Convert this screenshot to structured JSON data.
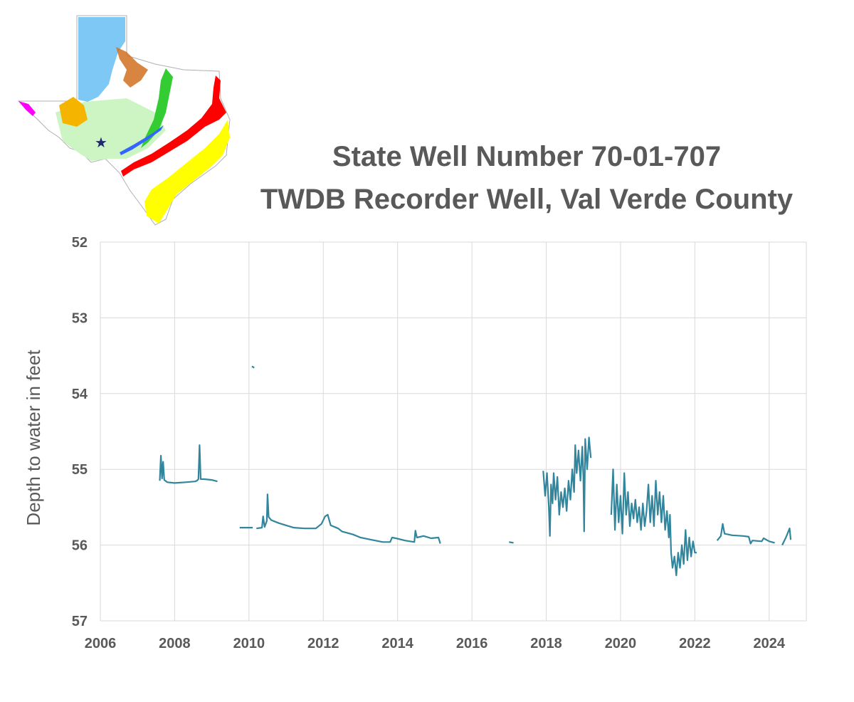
{
  "title": {
    "line1": "State Well Number 70-01-707",
    "line2": "TWDB Recorder Well, Val Verde County"
  },
  "inset_map": {
    "subject": "Texas aquifer map",
    "marker": "star-icon",
    "colors": {
      "ogallala": "#7ec8f5",
      "edwards_trinity": "#cdf5c4",
      "pecos_valley": "#f5b400",
      "trinity": "#33cc33",
      "carrizo_wilcox": "#ff0000",
      "gulf_coast": "#ffff00",
      "seymour": "#d07020",
      "hueco_mesilla": "#ff00ff",
      "edwards_bfz": "#3366ff",
      "star": "#1f2a6e"
    }
  },
  "chart_data": {
    "type": "line",
    "title": "State Well Number 70-01-707 TWDB Recorder Well, Val Verde County",
    "xlabel": "",
    "ylabel": "Depth to water in feet",
    "x_unit": "year",
    "xlim": [
      2006,
      2025
    ],
    "ylim": [
      57,
      52
    ],
    "y_inverted": true,
    "x_ticks": [
      "2006",
      "2008",
      "2010",
      "2012",
      "2014",
      "2016",
      "2018",
      "2020",
      "2022",
      "2024"
    ],
    "y_ticks": [
      "52",
      "53",
      "54",
      "55",
      "56",
      "57"
    ],
    "grid": true,
    "legend": "none",
    "color": "#31859c",
    "series": [
      {
        "segments": [
          [
            [
              2007.6,
              55.15
            ],
            [
              2007.63,
              54.82
            ],
            [
              2007.66,
              55.12
            ],
            [
              2007.69,
              54.9
            ],
            [
              2007.72,
              55.14
            ],
            [
              2007.8,
              55.17
            ],
            [
              2008.0,
              55.18
            ],
            [
              2008.3,
              55.17
            ],
            [
              2008.55,
              55.16
            ],
            [
              2008.6,
              55.15
            ],
            [
              2008.64,
              55.13
            ],
            [
              2008.67,
              54.68
            ],
            [
              2008.7,
              55.13
            ],
            [
              2008.8,
              55.13
            ],
            [
              2009.0,
              55.14
            ],
            [
              2009.15,
              55.16
            ]
          ],
          [
            [
              2009.75,
              55.77
            ],
            [
              2010.1,
              55.77
            ]
          ],
          [
            [
              2010.08,
              53.64
            ],
            [
              2010.14,
              53.66
            ]
          ],
          [
            [
              2010.2,
              55.78
            ],
            [
              2010.35,
              55.77
            ],
            [
              2010.38,
              55.62
            ],
            [
              2010.42,
              55.76
            ],
            [
              2010.48,
              55.68
            ],
            [
              2010.5,
              55.33
            ],
            [
              2010.53,
              55.63
            ],
            [
              2010.6,
              55.67
            ],
            [
              2010.8,
              55.71
            ],
            [
              2011.0,
              55.74
            ],
            [
              2011.2,
              55.77
            ],
            [
              2011.5,
              55.78
            ],
            [
              2011.8,
              55.78
            ],
            [
              2011.95,
              55.72
            ],
            [
              2012.05,
              55.62
            ],
            [
              2012.12,
              55.6
            ],
            [
              2012.2,
              55.74
            ],
            [
              2012.4,
              55.78
            ],
            [
              2012.5,
              55.82
            ],
            [
              2012.8,
              55.86
            ],
            [
              2013.0,
              55.9
            ],
            [
              2013.3,
              55.93
            ],
            [
              2013.6,
              55.96
            ],
            [
              2013.8,
              55.96
            ],
            [
              2013.85,
              55.9
            ],
            [
              2013.95,
              55.91
            ],
            [
              2014.2,
              55.94
            ],
            [
              2014.45,
              55.96
            ],
            [
              2014.48,
              55.81
            ],
            [
              2014.52,
              55.9
            ],
            [
              2014.7,
              55.88
            ],
            [
              2014.9,
              55.91
            ],
            [
              2015.1,
              55.9
            ],
            [
              2015.15,
              55.98
            ]
          ],
          [
            [
              2017.0,
              55.96
            ],
            [
              2017.12,
              55.97
            ]
          ],
          [
            [
              2017.92,
              55.02
            ],
            [
              2017.97,
              55.35
            ],
            [
              2018.02,
              55.05
            ],
            [
              2018.07,
              55.5
            ],
            [
              2018.1,
              55.88
            ],
            [
              2018.13,
              55.2
            ],
            [
              2018.17,
              55.45
            ],
            [
              2018.2,
              55.05
            ],
            [
              2018.25,
              55.4
            ],
            [
              2018.3,
              55.1
            ],
            [
              2018.35,
              55.6
            ],
            [
              2018.4,
              55.3
            ],
            [
              2018.45,
              55.5
            ],
            [
              2018.5,
              55.25
            ],
            [
              2018.55,
              55.55
            ],
            [
              2018.6,
              55.15
            ],
            [
              2018.65,
              55.4
            ],
            [
              2018.7,
              55.0
            ],
            [
              2018.75,
              55.3
            ],
            [
              2018.78,
              54.68
            ],
            [
              2018.82,
              55.05
            ],
            [
              2018.87,
              54.75
            ],
            [
              2018.92,
              55.15
            ],
            [
              2018.97,
              54.7
            ],
            [
              2019.0,
              55.1
            ],
            [
              2019.02,
              55.82
            ],
            [
              2019.05,
              54.6
            ],
            [
              2019.1,
              55.0
            ],
            [
              2019.15,
              54.58
            ],
            [
              2019.2,
              54.85
            ]
          ],
          [
            [
              2019.75,
              55.6
            ],
            [
              2019.8,
              55.0
            ],
            [
              2019.85,
              55.8
            ],
            [
              2019.9,
              55.2
            ],
            [
              2019.95,
              55.7
            ],
            [
              2020.0,
              55.35
            ],
            [
              2020.05,
              55.85
            ],
            [
              2020.1,
              55.05
            ],
            [
              2020.15,
              55.6
            ],
            [
              2020.2,
              55.3
            ],
            [
              2020.25,
              55.75
            ],
            [
              2020.3,
              55.45
            ],
            [
              2020.35,
              55.65
            ],
            [
              2020.4,
              55.4
            ],
            [
              2020.45,
              55.7
            ],
            [
              2020.5,
              55.5
            ],
            [
              2020.55,
              55.8
            ],
            [
              2020.6,
              55.45
            ],
            [
              2020.65,
              55.75
            ],
            [
              2020.7,
              55.55
            ],
            [
              2020.75,
              55.2
            ],
            [
              2020.8,
              55.7
            ],
            [
              2020.85,
              55.35
            ],
            [
              2020.9,
              55.75
            ],
            [
              2020.95,
              55.15
            ],
            [
              2021.0,
              55.6
            ],
            [
              2021.05,
              55.3
            ],
            [
              2021.1,
              55.7
            ],
            [
              2021.15,
              55.35
            ],
            [
              2021.2,
              55.8
            ],
            [
              2021.25,
              55.55
            ],
            [
              2021.3,
              55.9
            ],
            [
              2021.33,
              55.6
            ],
            [
              2021.36,
              56.1
            ],
            [
              2021.4,
              56.3
            ],
            [
              2021.45,
              56.15
            ],
            [
              2021.5,
              56.4
            ],
            [
              2021.55,
              56.1
            ],
            [
              2021.6,
              56.3
            ],
            [
              2021.65,
              56.0
            ],
            [
              2021.7,
              56.25
            ],
            [
              2021.75,
              55.8
            ],
            [
              2021.8,
              56.2
            ],
            [
              2021.85,
              55.9
            ],
            [
              2021.9,
              56.15
            ],
            [
              2021.95,
              55.95
            ],
            [
              2022.0,
              56.1
            ],
            [
              2022.05,
              56.1
            ]
          ],
          [
            [
              2022.6,
              55.94
            ],
            [
              2022.7,
              55.88
            ],
            [
              2022.75,
              55.72
            ],
            [
              2022.8,
              55.85
            ],
            [
              2023.0,
              55.87
            ],
            [
              2023.3,
              55.88
            ],
            [
              2023.45,
              55.89
            ],
            [
              2023.5,
              55.98
            ],
            [
              2023.55,
              55.94
            ],
            [
              2023.8,
              55.95
            ],
            [
              2023.85,
              55.91
            ],
            [
              2024.0,
              55.95
            ],
            [
              2024.15,
              55.97
            ]
          ],
          [
            [
              2024.35,
              56.0
            ],
            [
              2024.45,
              55.9
            ],
            [
              2024.55,
              55.78
            ],
            [
              2024.58,
              55.93
            ]
          ]
        ]
      }
    ]
  }
}
